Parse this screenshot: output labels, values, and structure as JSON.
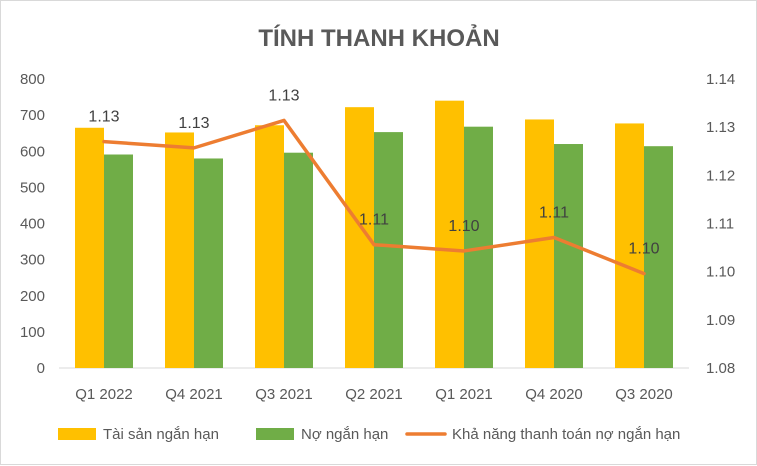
{
  "chart_data": {
    "type": "bar",
    "title": "TÍNH THANH KHOẢN",
    "categories": [
      "Q1 2022",
      "Q4 2021",
      "Q3 2021",
      "Q2 2021",
      "Q1 2021",
      "Q4 2020",
      "Q3 2020"
    ],
    "series": [
      {
        "name": "Tài sản ngắn hạn",
        "type": "bar",
        "axis": "left",
        "color": "#FFC000",
        "values": [
          665,
          652,
          672,
          722,
          740,
          688,
          677
        ]
      },
      {
        "name": "Nợ ngắn hạn",
        "type": "bar",
        "axis": "left",
        "color": "#70AD47",
        "values": [
          591,
          580,
          596,
          653,
          668,
          620,
          614
        ]
      },
      {
        "name": "Khả năng thanh toán nợ ngắn hạn",
        "type": "line",
        "axis": "right",
        "color": "#ED7D31",
        "values": [
          1.127,
          1.1257,
          1.1314,
          1.1056,
          1.1043,
          1.1071,
          1.0996
        ],
        "data_labels": [
          "1.13",
          "1.13",
          "1.13",
          "1.11",
          "1.10",
          "1.11",
          "1.10"
        ]
      }
    ],
    "y_left": {
      "ylim": [
        0,
        800
      ],
      "ticks": [
        "0",
        "100",
        "200",
        "300",
        "400",
        "500",
        "600",
        "700",
        "800"
      ]
    },
    "y_right": {
      "ylim": [
        1.08,
        1.14
      ],
      "ticks": [
        "1.08",
        "1.09",
        "1.10",
        "1.11",
        "1.12",
        "1.13",
        "1.14"
      ]
    },
    "grid": false,
    "legend": "bottom"
  }
}
